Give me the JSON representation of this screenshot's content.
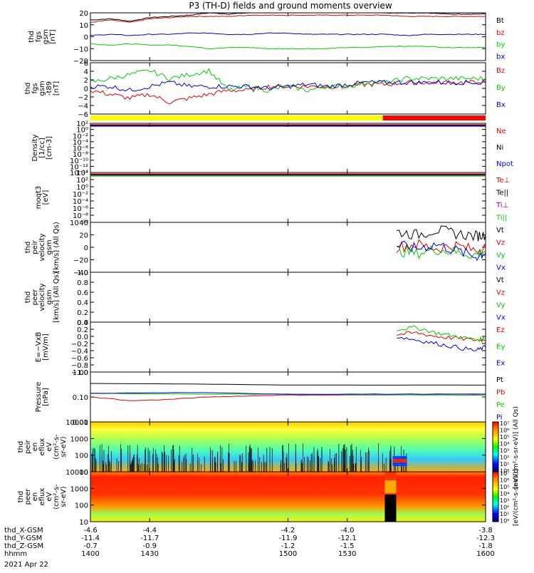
{
  "title": "P3 (TH-D) fields and ground moments overview",
  "date": "2021 Apr 22",
  "colors": {
    "black": "#000000",
    "red": "#e00000",
    "green": "#00d000",
    "blue": "#0000e0",
    "yellow": "#ffff00",
    "brightred": "#ff0000"
  },
  "status_bar": {
    "segments": [
      {
        "from": 1400,
        "to": 1548,
        "color": "#ffff00"
      },
      {
        "from": 1548,
        "to": 1600,
        "color": "#ff0000"
      }
    ]
  },
  "orbit_axis": {
    "rows": [
      {
        "label": "thd_X-GSM",
        "values": [
          "-4.6",
          "-4.4",
          "-4.2",
          "-4.0",
          "-3.8"
        ]
      },
      {
        "label": "thd_Y-GSM",
        "values": [
          "-11.4",
          "-11.7",
          "-11.9",
          "-12.1",
          "-12.3"
        ]
      },
      {
        "label": "thd_Z-GSM",
        "values": [
          "-0.7",
          "-0.9",
          "-1.2",
          "-1.5",
          "-1.8"
        ]
      },
      {
        "label": "hhmm",
        "values": [
          "1400",
          "1430",
          "1500",
          "1530",
          "1600"
        ]
      }
    ]
  },
  "colorbar": {
    "ticks": [
      "10⁷",
      "10⁶",
      "10⁵",
      "10⁴",
      "10³",
      "10²",
      "10¹",
      "10⁰"
    ],
    "label": "[eV/(cm²-s-sr-eV)] (All Qs)",
    "label2": "[eV/(cm²-s-sr-eV)]",
    "top_tick": "10⁷"
  },
  "chart_data": [
    {
      "type": "line",
      "panel": "fgs",
      "ylabel": [
        "thd",
        "fgs",
        "gsm",
        "[nT]"
      ],
      "ylim": [
        -20,
        20
      ],
      "yticks": [
        "20",
        "10",
        "0",
        "−10",
        "−20"
      ],
      "xlim": [
        1400,
        1600
      ],
      "series": [
        {
          "name": "Bt",
          "color": "#000000",
          "x": [
            1400,
            1410,
            1420,
            1430,
            1440,
            1450,
            1460,
            1470,
            1480,
            1490,
            1500,
            1510,
            1520,
            1530,
            1540,
            1550,
            1560,
            1570,
            1580,
            1590,
            1600
          ],
          "y": [
            14,
            15,
            13,
            16,
            17,
            18,
            20,
            19,
            20,
            21,
            21,
            22,
            21,
            21,
            21,
            20,
            20,
            20,
            19,
            19,
            19
          ]
        },
        {
          "name": "bz",
          "color": "#e00000",
          "x": [
            1400,
            1410,
            1420,
            1430,
            1440,
            1450,
            1460,
            1470,
            1480,
            1490,
            1500,
            1510,
            1520,
            1530,
            1540,
            1550,
            1560,
            1570,
            1580,
            1590,
            1600
          ],
          "y": [
            12,
            14,
            12,
            15,
            16,
            17,
            17,
            17,
            18,
            18,
            18,
            18,
            18,
            18,
            18,
            18,
            17,
            17,
            17,
            17,
            17
          ]
        },
        {
          "name": "by",
          "color": "#00d000",
          "x": [
            1400,
            1410,
            1420,
            1430,
            1440,
            1450,
            1460,
            1470,
            1480,
            1490,
            1500,
            1510,
            1520,
            1530,
            1540,
            1550,
            1560,
            1570,
            1580,
            1590,
            1600
          ],
          "y": [
            -6,
            -7,
            -6,
            -7,
            -7,
            -8,
            -10,
            -9,
            -9,
            -10,
            -10,
            -10,
            -10,
            -9,
            -9,
            -8,
            -8,
            -8,
            -9,
            -9,
            -9
          ]
        },
        {
          "name": "bx",
          "color": "#0000e0",
          "x": [
            1400,
            1410,
            1420,
            1430,
            1440,
            1450,
            1460,
            1470,
            1480,
            1490,
            1500,
            1510,
            1520,
            1530,
            1540,
            1550,
            1560,
            1570,
            1580,
            1590,
            1600
          ],
          "y": [
            1,
            2,
            1,
            2,
            2,
            3,
            3,
            2,
            2,
            3,
            3,
            2,
            2,
            2,
            2,
            2,
            1,
            2,
            2,
            2,
            2
          ]
        }
      ]
    },
    {
      "type": "line",
      "panel": "fgs-dsl-detrended",
      "ylabel": [
        "thd",
        "fgs",
        "gsm",
        "-t89",
        "[nT]"
      ],
      "ylim": [
        -7,
        6
      ],
      "yticks": [
        "6",
        "4",
        "2",
        "0",
        "−2",
        "−4",
        "−6"
      ],
      "xlim": [
        1400,
        1600
      ],
      "series": [
        {
          "name": "Bz",
          "color": "#e00000",
          "x": [
            1400,
            1410,
            1420,
            1430,
            1440,
            1450,
            1460,
            1470,
            1480,
            1490,
            1500,
            1510,
            1520,
            1530,
            1540,
            1550,
            1560,
            1570,
            1580,
            1590,
            1600
          ],
          "y": [
            -1,
            -2,
            -3,
            -2,
            -4,
            -3,
            -2,
            -1,
            -1,
            0,
            0,
            0,
            0,
            0,
            0.5,
            0.5,
            1,
            1,
            1,
            1,
            1
          ]
        },
        {
          "name": "By",
          "color": "#00d000",
          "x": [
            1400,
            1410,
            1420,
            1430,
            1440,
            1450,
            1460,
            1470,
            1480,
            1490,
            1500,
            1510,
            1520,
            1530,
            1540,
            1550,
            1560,
            1570,
            1580,
            1590,
            1600
          ],
          "y": [
            1,
            2,
            3,
            4,
            2,
            3,
            4,
            -1,
            0,
            -1,
            0,
            -1,
            0,
            0,
            1,
            1,
            2,
            2,
            2,
            2,
            2
          ]
        },
        {
          "name": "Bx",
          "color": "#0000e0",
          "x": [
            1400,
            1410,
            1420,
            1430,
            1440,
            1450,
            1460,
            1470,
            1480,
            1490,
            1500,
            1510,
            1520,
            1530,
            1540,
            1550,
            1560,
            1570,
            1580,
            1590,
            1600
          ],
          "y": [
            0,
            0,
            -1,
            0,
            1,
            0,
            0,
            0,
            0,
            -0.5,
            0,
            0.5,
            0,
            0.5,
            1,
            1,
            1,
            1,
            1,
            1,
            1
          ]
        }
      ]
    },
    {
      "type": "line",
      "panel": "density",
      "ylabel": [
        "Density",
        "[1/cc]",
        "[cm-3]"
      ],
      "scale": "log",
      "yticks": [
        "10²",
        "10⁰",
        "10⁻²",
        "10⁻⁴",
        "10⁻⁶",
        "10⁻⁸",
        "10⁻¹⁰",
        "10⁻¹²",
        "10⁻¹⁴"
      ],
      "xlim": [
        1400,
        1600
      ],
      "series": [
        {
          "name": "Ne",
          "color": "#e00000"
        },
        {
          "name": "Ni",
          "color": "#000000"
        },
        {
          "name": "Npot",
          "color": "#0000e0"
        }
      ]
    },
    {
      "type": "line",
      "panel": "temperature",
      "ylabel": [
        "moqt3",
        "[eV]"
      ],
      "scale": "log",
      "yticks": [
        "10⁴",
        "10²",
        "10⁰",
        "10⁻²",
        "10⁻⁴",
        "10⁻⁶",
        "10⁻⁸",
        "10⁻¹⁰"
      ],
      "xlim": [
        1400,
        1600
      ],
      "series": [
        {
          "name": "Te⊥",
          "color": "#e00000"
        },
        {
          "name": "Te||",
          "color": "#000000"
        },
        {
          "name": "Ti⊥",
          "color": "#a000a0"
        },
        {
          "name": "Ti||",
          "color": "#00d000"
        }
      ]
    },
    {
      "type": "line",
      "panel": "peir-velocity",
      "ylabel": [
        "thd",
        "peir",
        "velocity",
        "gsm",
        "[km/s] (All Qs)"
      ],
      "ylim": [
        -40,
        40
      ],
      "yticks": [
        "40",
        "20",
        "0",
        "−20",
        "−40"
      ],
      "xlim": [
        1400,
        1600
      ],
      "series": [
        {
          "name": "Vt",
          "color": "#000000",
          "x": [
            1555,
            1565,
            1575,
            1585,
            1595,
            1600
          ],
          "y": [
            25,
            20,
            28,
            22,
            18,
            20
          ]
        },
        {
          "name": "Vz",
          "color": "#e00000",
          "x": [
            1555,
            1565,
            1575,
            1585,
            1595,
            1600
          ],
          "y": [
            0,
            5,
            -2,
            3,
            -5,
            0
          ]
        },
        {
          "name": "Vy",
          "color": "#00d000",
          "x": [
            1555,
            1565,
            1575,
            1585,
            1595,
            1600
          ],
          "y": [
            -5,
            -10,
            -3,
            -8,
            -12,
            -5
          ]
        },
        {
          "name": "Vx",
          "color": "#0000e0",
          "x": [
            1555,
            1565,
            1575,
            1585,
            1595,
            1600
          ],
          "y": [
            3,
            -2,
            5,
            -5,
            -15,
            -8
          ]
        }
      ]
    },
    {
      "type": "line",
      "panel": "peer-velocity",
      "ylabel": [
        "thd",
        "peer",
        "velocity",
        "gsm",
        "[km/s] (All Qs)"
      ],
      "ylim": [
        0,
        1
      ],
      "yticks": [
        "1.0",
        "0.8",
        "0.6",
        "0.4",
        "0.2",
        "0.0"
      ],
      "xlim": [
        1400,
        1600
      ],
      "series": [
        {
          "name": "Vt",
          "color": "#000000"
        },
        {
          "name": "Vz",
          "color": "#e00000"
        },
        {
          "name": "Vy",
          "color": "#00d000"
        },
        {
          "name": "Vx",
          "color": "#0000e0"
        }
      ]
    },
    {
      "type": "line",
      "panel": "e-field",
      "ylabel": [
        "E=−VxB",
        "[mV/m]"
      ],
      "ylim": [
        -1,
        0.4
      ],
      "yticks": [
        "0.4",
        "0.2",
        "0.0",
        "−0.2",
        "−0.4",
        "−0.6",
        "−0.8",
        "−1.0"
      ],
      "xlim": [
        1400,
        1600
      ],
      "series": [
        {
          "name": "Ez",
          "color": "#e00000",
          "x": [
            1555,
            1565,
            1575,
            1585,
            1595,
            1600
          ],
          "y": [
            0.05,
            0.1,
            0.0,
            -0.05,
            -0.1,
            -0.1
          ]
        },
        {
          "name": "Ey",
          "color": "#00d000",
          "x": [
            1555,
            1565,
            1575,
            1585,
            1595,
            1600
          ],
          "y": [
            0.2,
            0.25,
            0.1,
            0.0,
            -0.1,
            -0.05
          ]
        },
        {
          "name": "Ex",
          "color": "#0000e0",
          "x": [
            1555,
            1565,
            1575,
            1585,
            1595,
            1600
          ],
          "y": [
            0.0,
            -0.1,
            -0.2,
            -0.3,
            -0.4,
            -0.3
          ]
        }
      ]
    },
    {
      "type": "line",
      "panel": "pressure",
      "ylabel": [
        "Pressure",
        "[nPa]"
      ],
      "scale": "log",
      "yticks": [
        "1.00",
        "0.10",
        "0.01"
      ],
      "xlim": [
        1400,
        1600
      ],
      "series": [
        {
          "name": "Pt",
          "color": "#000000",
          "x": [
            1400,
            1450,
            1500,
            1550,
            1600
          ],
          "y": [
            0.35,
            0.33,
            0.3,
            0.3,
            0.3
          ]
        },
        {
          "name": "Pb",
          "color": "#e00000",
          "x": [
            1400,
            1420,
            1440,
            1460,
            1480,
            1500,
            1550,
            1600
          ],
          "y": [
            0.1,
            0.07,
            0.08,
            0.1,
            0.11,
            0.12,
            0.12,
            0.12
          ]
        },
        {
          "name": "Pe",
          "color": "#00d000",
          "x": [
            1400,
            1450,
            1500,
            1550,
            1600
          ],
          "y": [
            0.14,
            0.13,
            0.13,
            0.12,
            0.12
          ]
        },
        {
          "name": "Pi",
          "color": "#0000e0",
          "x": [
            1400,
            1450,
            1500,
            1550,
            1600
          ],
          "y": [
            0.14,
            0.15,
            0.13,
            0.13,
            0.13
          ]
        }
      ]
    },
    {
      "type": "heatmap",
      "panel": "peir-eflux",
      "ylabel": [
        "thd",
        "peir",
        "en",
        "eflux",
        "eV",
        "(cm²-s-",
        "sr-eV)"
      ],
      "scale": "log",
      "yticks": [
        "10000",
        "1000",
        "100",
        "10"
      ],
      "xlim": [
        1400,
        1600
      ]
    },
    {
      "type": "heatmap",
      "panel": "peer-eflux",
      "ylabel": [
        "thd",
        "peer",
        "en",
        "eflux",
        "eV",
        "(cm²-s-",
        "sr-eV)"
      ],
      "scale": "log",
      "yticks": [
        "10000",
        "1000",
        "100",
        "10"
      ],
      "xlim": [
        1400,
        1600
      ]
    }
  ]
}
